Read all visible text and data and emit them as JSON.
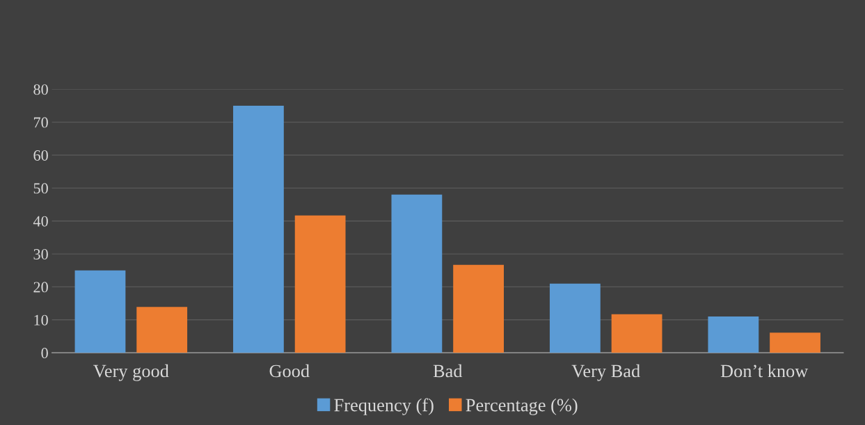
{
  "chart_data": {
    "type": "bar",
    "categories": [
      "Very good",
      "Good",
      "Bad",
      "Very Bad",
      "Don’t know"
    ],
    "series": [
      {
        "name": "Frequency (f)",
        "color": "#5b9bd5",
        "values": [
          25,
          75,
          48,
          21,
          11
        ]
      },
      {
        "name": "Percentage (%)",
        "color": "#ed7d31",
        "values": [
          13.9,
          41.7,
          26.7,
          11.7,
          6.1
        ]
      }
    ],
    "ylim": [
      0,
      80
    ],
    "yticks": [
      0,
      10,
      20,
      30,
      40,
      50,
      60,
      70,
      80
    ],
    "grid": "y",
    "legend": "bottom"
  }
}
